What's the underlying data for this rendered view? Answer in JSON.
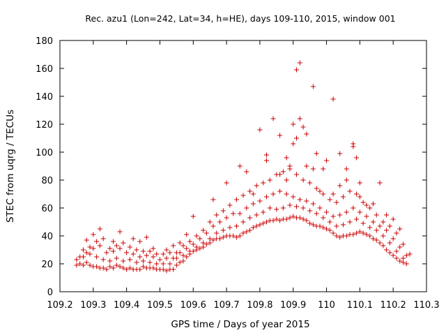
{
  "chart_data": {
    "type": "scatter",
    "title": "Rec. azu1 (Lon=242, Lat=34, h=HE), days 109-110, 2015, window 001",
    "xlabel": "GPS time / Days of year 2015",
    "ylabel": "STEC from uqrg / TECUs",
    "xlim": [
      109.2,
      110.3
    ],
    "ylim": [
      0,
      180
    ],
    "xticks": [
      109.2,
      109.3,
      109.4,
      109.5,
      109.6,
      109.7,
      109.8,
      109.9,
      110,
      110.1,
      110.2,
      110.3
    ],
    "xtick_labels": [
      "109.2",
      "109.3",
      "109.4",
      "109.5",
      "109.6",
      "109.7",
      "109.8",
      "109.9",
      "110",
      "110.1",
      "110.2",
      "110.3"
    ],
    "yticks": [
      0,
      20,
      40,
      60,
      80,
      100,
      120,
      140,
      160,
      180
    ],
    "ytick_labels": [
      "0",
      "20",
      "40",
      "60",
      "80",
      "100",
      "120",
      "140",
      "160",
      "180"
    ],
    "grid": false,
    "legend": "none",
    "marker": "plus",
    "color": "#cc0000",
    "points": [
      [
        109.25,
        19
      ],
      [
        109.26,
        20
      ],
      [
        109.27,
        19
      ],
      [
        109.28,
        21
      ],
      [
        109.29,
        19
      ],
      [
        109.3,
        18
      ],
      [
        109.31,
        18
      ],
      [
        109.32,
        17
      ],
      [
        109.33,
        17
      ],
      [
        109.34,
        16
      ],
      [
        109.35,
        18
      ],
      [
        109.36,
        17
      ],
      [
        109.37,
        19
      ],
      [
        109.38,
        18
      ],
      [
        109.39,
        17
      ],
      [
        109.4,
        16
      ],
      [
        109.41,
        17
      ],
      [
        109.42,
        16
      ],
      [
        109.43,
        16
      ],
      [
        109.44,
        16
      ],
      [
        109.45,
        18
      ],
      [
        109.46,
        17
      ],
      [
        109.47,
        17
      ],
      [
        109.48,
        17
      ],
      [
        109.49,
        16
      ],
      [
        109.5,
        16
      ],
      [
        109.51,
        16
      ],
      [
        109.52,
        15
      ],
      [
        109.53,
        16
      ],
      [
        109.54,
        16
      ],
      [
        109.55,
        19
      ],
      [
        109.56,
        21
      ],
      [
        109.57,
        22
      ],
      [
        109.58,
        25
      ],
      [
        109.59,
        27
      ],
      [
        109.6,
        29
      ],
      [
        109.61,
        30
      ],
      [
        109.62,
        31
      ],
      [
        109.63,
        32
      ],
      [
        109.64,
        34
      ],
      [
        109.65,
        35
      ],
      [
        109.66,
        37
      ],
      [
        109.67,
        38
      ],
      [
        109.68,
        38
      ],
      [
        109.69,
        39
      ],
      [
        109.7,
        40
      ],
      [
        109.71,
        40
      ],
      [
        109.72,
        40
      ],
      [
        109.73,
        39
      ],
      [
        109.74,
        40
      ],
      [
        109.75,
        42
      ],
      [
        109.76,
        43
      ],
      [
        109.77,
        44
      ],
      [
        109.78,
        46
      ],
      [
        109.79,
        47
      ],
      [
        109.8,
        48
      ],
      [
        109.81,
        49
      ],
      [
        109.82,
        50
      ],
      [
        109.83,
        51
      ],
      [
        109.84,
        51
      ],
      [
        109.85,
        52
      ],
      [
        109.86,
        51
      ],
      [
        109.87,
        52
      ],
      [
        109.88,
        52
      ],
      [
        109.89,
        53
      ],
      [
        109.9,
        54
      ],
      [
        109.91,
        53
      ],
      [
        109.92,
        53
      ],
      [
        109.93,
        52
      ],
      [
        109.94,
        51
      ],
      [
        109.95,
        49
      ],
      [
        109.96,
        48
      ],
      [
        109.97,
        47
      ],
      [
        109.98,
        47
      ],
      [
        109.99,
        46
      ],
      [
        110.0,
        45
      ],
      [
        110.01,
        44
      ],
      [
        110.02,
        42
      ],
      [
        110.03,
        40
      ],
      [
        110.04,
        39
      ],
      [
        110.05,
        40
      ],
      [
        110.06,
        40
      ],
      [
        110.07,
        41
      ],
      [
        110.08,
        41
      ],
      [
        110.09,
        42
      ],
      [
        110.1,
        43
      ],
      [
        110.11,
        42
      ],
      [
        110.12,
        41
      ],
      [
        110.13,
        40
      ],
      [
        110.14,
        38
      ],
      [
        110.15,
        37
      ],
      [
        110.16,
        35
      ],
      [
        110.17,
        33
      ],
      [
        110.18,
        30
      ],
      [
        110.19,
        28
      ],
      [
        110.2,
        26
      ],
      [
        110.21,
        24
      ],
      [
        110.22,
        22
      ],
      [
        110.23,
        21
      ],
      [
        110.24,
        20
      ],
      [
        109.25,
        23
      ],
      [
        109.27,
        25
      ],
      [
        109.29,
        27
      ],
      [
        109.31,
        25
      ],
      [
        109.33,
        23
      ],
      [
        109.35,
        22
      ],
      [
        109.37,
        24
      ],
      [
        109.39,
        22
      ],
      [
        109.41,
        23
      ],
      [
        109.43,
        21
      ],
      [
        109.45,
        22
      ],
      [
        109.47,
        21
      ],
      [
        109.49,
        20
      ],
      [
        109.51,
        20
      ],
      [
        109.53,
        20
      ],
      [
        109.55,
        24
      ],
      [
        109.57,
        26
      ],
      [
        109.59,
        29
      ],
      [
        109.61,
        32
      ],
      [
        109.63,
        35
      ],
      [
        109.65,
        38
      ],
      [
        109.67,
        42
      ],
      [
        109.69,
        44
      ],
      [
        109.71,
        46
      ],
      [
        109.73,
        47
      ],
      [
        109.75,
        50
      ],
      [
        109.77,
        53
      ],
      [
        109.79,
        55
      ],
      [
        109.81,
        57
      ],
      [
        109.83,
        60
      ],
      [
        109.85,
        59
      ],
      [
        109.87,
        60
      ],
      [
        109.89,
        62
      ],
      [
        109.91,
        61
      ],
      [
        109.93,
        60
      ],
      [
        109.95,
        58
      ],
      [
        109.97,
        56
      ],
      [
        109.99,
        53
      ],
      [
        110.01,
        50
      ],
      [
        110.03,
        47
      ],
      [
        110.05,
        48
      ],
      [
        110.07,
        50
      ],
      [
        110.09,
        52
      ],
      [
        110.11,
        49
      ],
      [
        110.13,
        46
      ],
      [
        110.15,
        44
      ],
      [
        110.17,
        40
      ],
      [
        110.19,
        35
      ],
      [
        110.21,
        29
      ],
      [
        110.23,
        24
      ],
      [
        109.26,
        25
      ],
      [
        109.28,
        28
      ],
      [
        109.3,
        31
      ],
      [
        109.32,
        33
      ],
      [
        109.34,
        28
      ],
      [
        109.36,
        29
      ],
      [
        109.38,
        31
      ],
      [
        109.4,
        28
      ],
      [
        109.42,
        27
      ],
      [
        109.44,
        25
      ],
      [
        109.46,
        26
      ],
      [
        109.48,
        25
      ],
      [
        109.5,
        23
      ],
      [
        109.52,
        24
      ],
      [
        109.54,
        24
      ],
      [
        109.56,
        28
      ],
      [
        109.58,
        31
      ],
      [
        109.6,
        34
      ],
      [
        109.62,
        38
      ],
      [
        109.64,
        42
      ],
      [
        109.66,
        47
      ],
      [
        109.68,
        50
      ],
      [
        109.7,
        53
      ],
      [
        109.72,
        56
      ],
      [
        109.74,
        56
      ],
      [
        109.76,
        60
      ],
      [
        109.78,
        63
      ],
      [
        109.8,
        65
      ],
      [
        109.82,
        68
      ],
      [
        109.84,
        70
      ],
      [
        109.86,
        72
      ],
      [
        109.88,
        70
      ],
      [
        109.9,
        68
      ],
      [
        109.92,
        66
      ],
      [
        109.94,
        65
      ],
      [
        109.96,
        63
      ],
      [
        109.98,
        60
      ],
      [
        110.0,
        57
      ],
      [
        110.02,
        54
      ],
      [
        110.04,
        55
      ],
      [
        110.06,
        57
      ],
      [
        110.08,
        60
      ],
      [
        110.1,
        57
      ],
      [
        110.12,
        54
      ],
      [
        110.14,
        50
      ],
      [
        110.16,
        47
      ],
      [
        110.18,
        44
      ],
      [
        110.2,
        38
      ],
      [
        110.22,
        32
      ],
      [
        110.24,
        26
      ],
      [
        109.27,
        30
      ],
      [
        109.29,
        32
      ],
      [
        109.31,
        36
      ],
      [
        109.33,
        38
      ],
      [
        109.35,
        31
      ],
      [
        109.37,
        33
      ],
      [
        109.39,
        35
      ],
      [
        109.41,
        32
      ],
      [
        109.43,
        30
      ],
      [
        109.45,
        29
      ],
      [
        109.47,
        29
      ],
      [
        109.49,
        27
      ],
      [
        109.51,
        27
      ],
      [
        109.53,
        28
      ],
      [
        109.55,
        28
      ],
      [
        109.57,
        33
      ],
      [
        109.59,
        36
      ],
      [
        109.61,
        40
      ],
      [
        109.63,
        44
      ],
      [
        109.65,
        50
      ],
      [
        109.67,
        55
      ],
      [
        109.69,
        58
      ],
      [
        109.71,
        62
      ],
      [
        109.73,
        66
      ],
      [
        109.75,
        69
      ],
      [
        109.77,
        72
      ],
      [
        109.79,
        76
      ],
      [
        109.81,
        78
      ],
      [
        109.83,
        80
      ],
      [
        109.85,
        84
      ],
      [
        109.87,
        86
      ],
      [
        109.89,
        88
      ],
      [
        109.91,
        84
      ],
      [
        109.93,
        80
      ],
      [
        109.95,
        78
      ],
      [
        109.97,
        74
      ],
      [
        109.99,
        70
      ],
      [
        110.01,
        66
      ],
      [
        110.03,
        64
      ],
      [
        110.05,
        68
      ],
      [
        110.07,
        72
      ],
      [
        110.09,
        70
      ],
      [
        110.11,
        64
      ],
      [
        110.13,
        60
      ],
      [
        110.15,
        55
      ],
      [
        110.17,
        50
      ],
      [
        110.19,
        47
      ],
      [
        110.21,
        42
      ],
      [
        110.23,
        34
      ],
      [
        110.25,
        27
      ],
      [
        109.28,
        37
      ],
      [
        109.3,
        41
      ],
      [
        109.32,
        45
      ],
      [
        109.36,
        36
      ],
      [
        109.38,
        43
      ],
      [
        109.42,
        38
      ],
      [
        109.44,
        36
      ],
      [
        109.46,
        39
      ],
      [
        109.48,
        31
      ],
      [
        109.52,
        30
      ],
      [
        109.54,
        33
      ],
      [
        109.56,
        35
      ],
      [
        109.58,
        41
      ],
      [
        109.6,
        54
      ],
      [
        109.66,
        66
      ],
      [
        109.7,
        78
      ],
      [
        109.74,
        90
      ],
      [
        109.76,
        86
      ],
      [
        109.78,
        70
      ],
      [
        109.8,
        116
      ],
      [
        109.82,
        98
      ],
      [
        109.84,
        124
      ],
      [
        109.86,
        112
      ],
      [
        109.88,
        96
      ],
      [
        109.9,
        106
      ],
      [
        109.91,
        159
      ],
      [
        109.92,
        164
      ],
      [
        109.93,
        118
      ],
      [
        109.94,
        90
      ],
      [
        109.96,
        147
      ],
      [
        109.97,
        99
      ],
      [
        109.99,
        88
      ],
      [
        110.02,
        138
      ],
      [
        110.04,
        99
      ],
      [
        110.06,
        88
      ],
      [
        110.08,
        106
      ],
      [
        110.09,
        96
      ],
      [
        110.1,
        78
      ],
      [
        110.12,
        62
      ],
      [
        110.16,
        78
      ],
      [
        109.82,
        94
      ],
      [
        109.86,
        84
      ],
      [
        109.88,
        80
      ],
      [
        109.89,
        90
      ],
      [
        109.9,
        120
      ],
      [
        109.91,
        110
      ],
      [
        109.92,
        124
      ],
      [
        109.94,
        113
      ],
      [
        109.96,
        88
      ],
      [
        109.98,
        72
      ],
      [
        110.0,
        94
      ],
      [
        110.02,
        70
      ],
      [
        110.04,
        76
      ],
      [
        110.06,
        80
      ],
      [
        110.08,
        104
      ],
      [
        110.1,
        68
      ],
      [
        110.14,
        63
      ],
      [
        110.18,
        55
      ],
      [
        110.2,
        52
      ],
      [
        110.22,
        45
      ]
    ]
  }
}
